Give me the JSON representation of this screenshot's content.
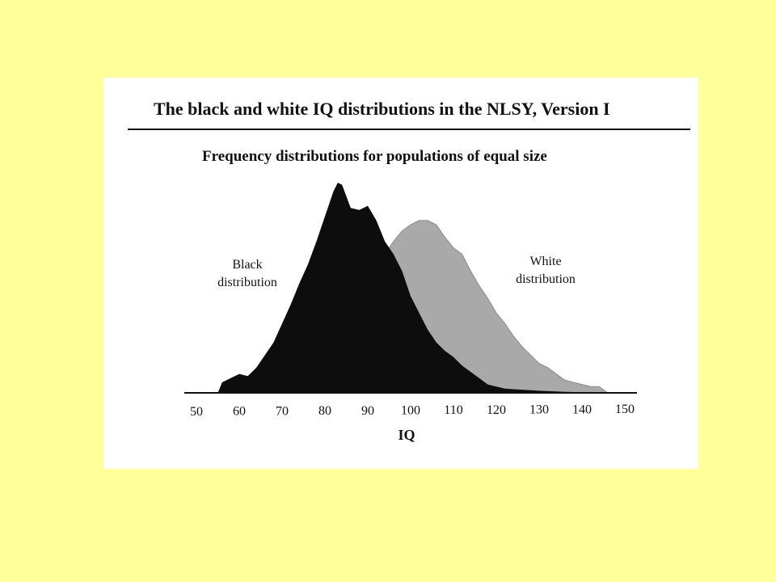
{
  "colors": {
    "background": "#ffff99",
    "card": "#ffffff",
    "black_series": "#0d0d0d",
    "white_series": "#a9a9a9"
  },
  "chart_data": {
    "type": "area",
    "title": "The black and white IQ distributions in the NLSY, Version I",
    "subtitle": "Frequency distributions for populations of equal size",
    "xlabel": "IQ",
    "ylabel": "",
    "xlim": [
      50,
      150
    ],
    "ticks": [
      50,
      60,
      70,
      80,
      90,
      100,
      110,
      120,
      130,
      140,
      150
    ],
    "grid": false,
    "legend": "none",
    "series": [
      {
        "name": "Black\ndistribution",
        "label_position": "left of peak",
        "points": [
          [
            55,
            0
          ],
          [
            56,
            0.05
          ],
          [
            58,
            0.07
          ],
          [
            60,
            0.09
          ],
          [
            62,
            0.08
          ],
          [
            64,
            0.12
          ],
          [
            66,
            0.18
          ],
          [
            68,
            0.24
          ],
          [
            70,
            0.33
          ],
          [
            72,
            0.42
          ],
          [
            74,
            0.52
          ],
          [
            76,
            0.61
          ],
          [
            78,
            0.72
          ],
          [
            80,
            0.84
          ],
          [
            82,
            0.96
          ],
          [
            83,
            1.0
          ],
          [
            84,
            0.99
          ],
          [
            86,
            0.88
          ],
          [
            88,
            0.87
          ],
          [
            90,
            0.89
          ],
          [
            92,
            0.82
          ],
          [
            94,
            0.72
          ],
          [
            96,
            0.66
          ],
          [
            98,
            0.58
          ],
          [
            100,
            0.46
          ],
          [
            102,
            0.38
          ],
          [
            104,
            0.3
          ],
          [
            106,
            0.24
          ],
          [
            108,
            0.2
          ],
          [
            110,
            0.17
          ],
          [
            112,
            0.13
          ],
          [
            114,
            0.1
          ],
          [
            116,
            0.07
          ],
          [
            118,
            0.04
          ],
          [
            120,
            0.03
          ],
          [
            122,
            0.02
          ],
          [
            126,
            0.015
          ],
          [
            130,
            0.01
          ],
          [
            136,
            0.005
          ],
          [
            140,
            0.003
          ],
          [
            145,
            0
          ]
        ]
      },
      {
        "name": "White\ndistribution",
        "label_position": "right of peak",
        "points": [
          [
            56,
            0
          ],
          [
            60,
            0.01
          ],
          [
            64,
            0.02
          ],
          [
            68,
            0.03
          ],
          [
            72,
            0.05
          ],
          [
            76,
            0.08
          ],
          [
            80,
            0.14
          ],
          [
            84,
            0.24
          ],
          [
            88,
            0.38
          ],
          [
            90,
            0.47
          ],
          [
            92,
            0.58
          ],
          [
            94,
            0.66
          ],
          [
            96,
            0.72
          ],
          [
            98,
            0.77
          ],
          [
            100,
            0.8
          ],
          [
            102,
            0.82
          ],
          [
            104,
            0.82
          ],
          [
            106,
            0.8
          ],
          [
            108,
            0.74
          ],
          [
            110,
            0.69
          ],
          [
            112,
            0.66
          ],
          [
            114,
            0.58
          ],
          [
            116,
            0.51
          ],
          [
            118,
            0.45
          ],
          [
            120,
            0.38
          ],
          [
            122,
            0.33
          ],
          [
            124,
            0.27
          ],
          [
            126,
            0.22
          ],
          [
            128,
            0.18
          ],
          [
            130,
            0.14
          ],
          [
            132,
            0.12
          ],
          [
            134,
            0.09
          ],
          [
            136,
            0.06
          ],
          [
            138,
            0.05
          ],
          [
            140,
            0.04
          ],
          [
            142,
            0.03
          ],
          [
            144,
            0.03
          ],
          [
            146,
            0
          ]
        ]
      }
    ]
  }
}
